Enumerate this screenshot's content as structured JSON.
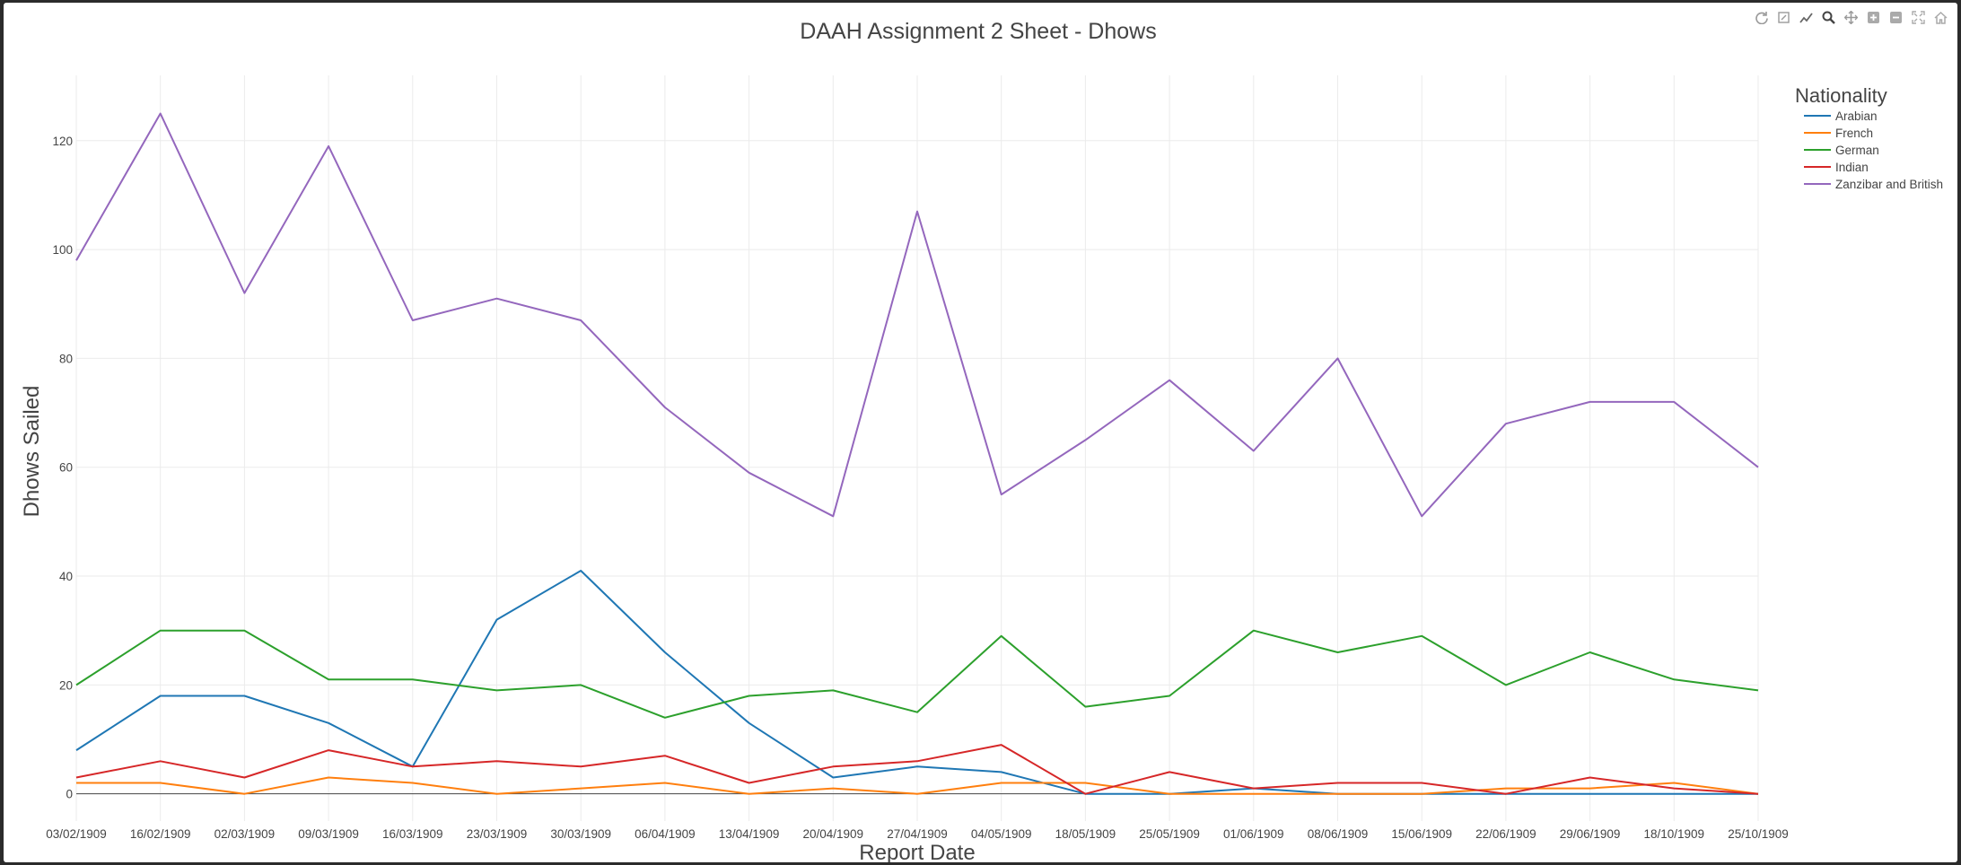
{
  "modebar": {
    "icons": [
      "reset-axes-icon",
      "autoscale-icon",
      "compare-hover-icon",
      "zoom-icon",
      "pan-icon",
      "zoom-in-icon",
      "zoom-out-icon",
      "fullscreen-icon",
      "home-icon"
    ]
  },
  "chart_data": {
    "type": "line",
    "title": "DAAH Assignment 2 Sheet - Dhows",
    "xlabel": "Report Date",
    "ylabel": "Dhows Sailed",
    "x": [
      "03/02/1909",
      "16/02/1909",
      "02/03/1909",
      "09/03/1909",
      "16/03/1909",
      "23/03/1909",
      "30/03/1909",
      "06/04/1909",
      "13/04/1909",
      "20/04/1909",
      "27/04/1909",
      "04/05/1909",
      "18/05/1909",
      "25/05/1909",
      "01/06/1909",
      "08/06/1909",
      "15/06/1909",
      "22/06/1909",
      "29/06/1909",
      "18/10/1909",
      "25/10/1909"
    ],
    "ylim": [
      -5,
      132
    ],
    "yticks": [
      0,
      20,
      40,
      60,
      80,
      100,
      120
    ],
    "grid": true,
    "legend_title": "Nationality",
    "legend_position": "right",
    "series": [
      {
        "name": "Arabian",
        "color": "#1f77b4",
        "values": [
          8,
          18,
          18,
          13,
          5,
          32,
          41,
          26,
          13,
          3,
          5,
          4,
          0,
          0,
          1,
          0,
          0,
          0,
          0,
          0,
          0
        ]
      },
      {
        "name": "French",
        "color": "#ff7f0e",
        "values": [
          2,
          2,
          0,
          3,
          2,
          0,
          1,
          2,
          0,
          1,
          0,
          2,
          2,
          0,
          0,
          0,
          0,
          1,
          1,
          2,
          0
        ]
      },
      {
        "name": "German",
        "color": "#2ca02c",
        "values": [
          20,
          30,
          30,
          21,
          21,
          19,
          20,
          14,
          18,
          19,
          15,
          29,
          16,
          18,
          30,
          26,
          29,
          20,
          26,
          21,
          19
        ]
      },
      {
        "name": "Indian",
        "color": "#d62728",
        "values": [
          3,
          6,
          3,
          8,
          5,
          6,
          5,
          7,
          2,
          5,
          6,
          9,
          0,
          4,
          1,
          2,
          2,
          0,
          3,
          1,
          0
        ]
      },
      {
        "name": "Zanzibar and British",
        "color": "#9467bd",
        "values": [
          98,
          125,
          92,
          119,
          87,
          91,
          87,
          71,
          59,
          51,
          107,
          55,
          65,
          76,
          63,
          80,
          51,
          68,
          72,
          72,
          60
        ]
      }
    ]
  }
}
